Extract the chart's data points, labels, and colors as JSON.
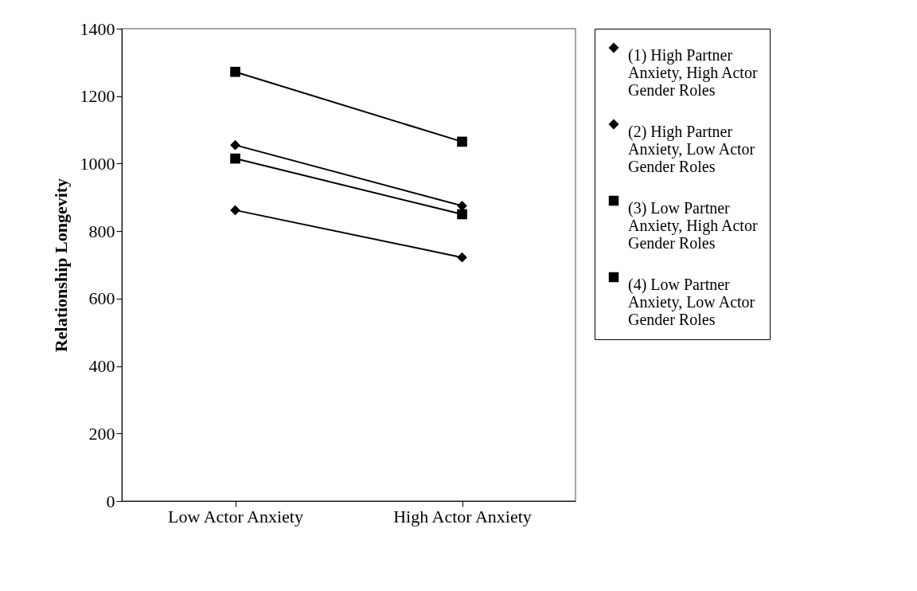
{
  "chart_data": {
    "type": "line",
    "ylabel": "Relationship  Longevity",
    "categories": [
      "Low Actor Anxiety",
      "High Actor Anxiety"
    ],
    "series": [
      {
        "name": "(1) High Partner Anxiety, High Actor Gender Roles",
        "color": "#000000",
        "marker": "diamond",
        "values": [
          862,
          722
        ]
      },
      {
        "name": "(2) High Partner Anxiety, Low Actor Gender Roles",
        "color": "#000000",
        "marker": "diamond",
        "values": [
          1055,
          875
        ]
      },
      {
        "name": "(3) Low Partner Anxiety, High Actor Gender Roles",
        "color": "#000000",
        "marker": "square",
        "values": [
          1015,
          850
        ]
      },
      {
        "name": "(4) Low Partner Anxiety, Low Actor Gender Roles",
        "color": "#000000",
        "marker": "square",
        "values": [
          1272,
          1065
        ]
      }
    ],
    "ylim": [
      0,
      1400
    ],
    "yticks": [
      0,
      200,
      400,
      600,
      800,
      1000,
      1200,
      1400
    ],
    "grid": false,
    "legend": "right"
  }
}
